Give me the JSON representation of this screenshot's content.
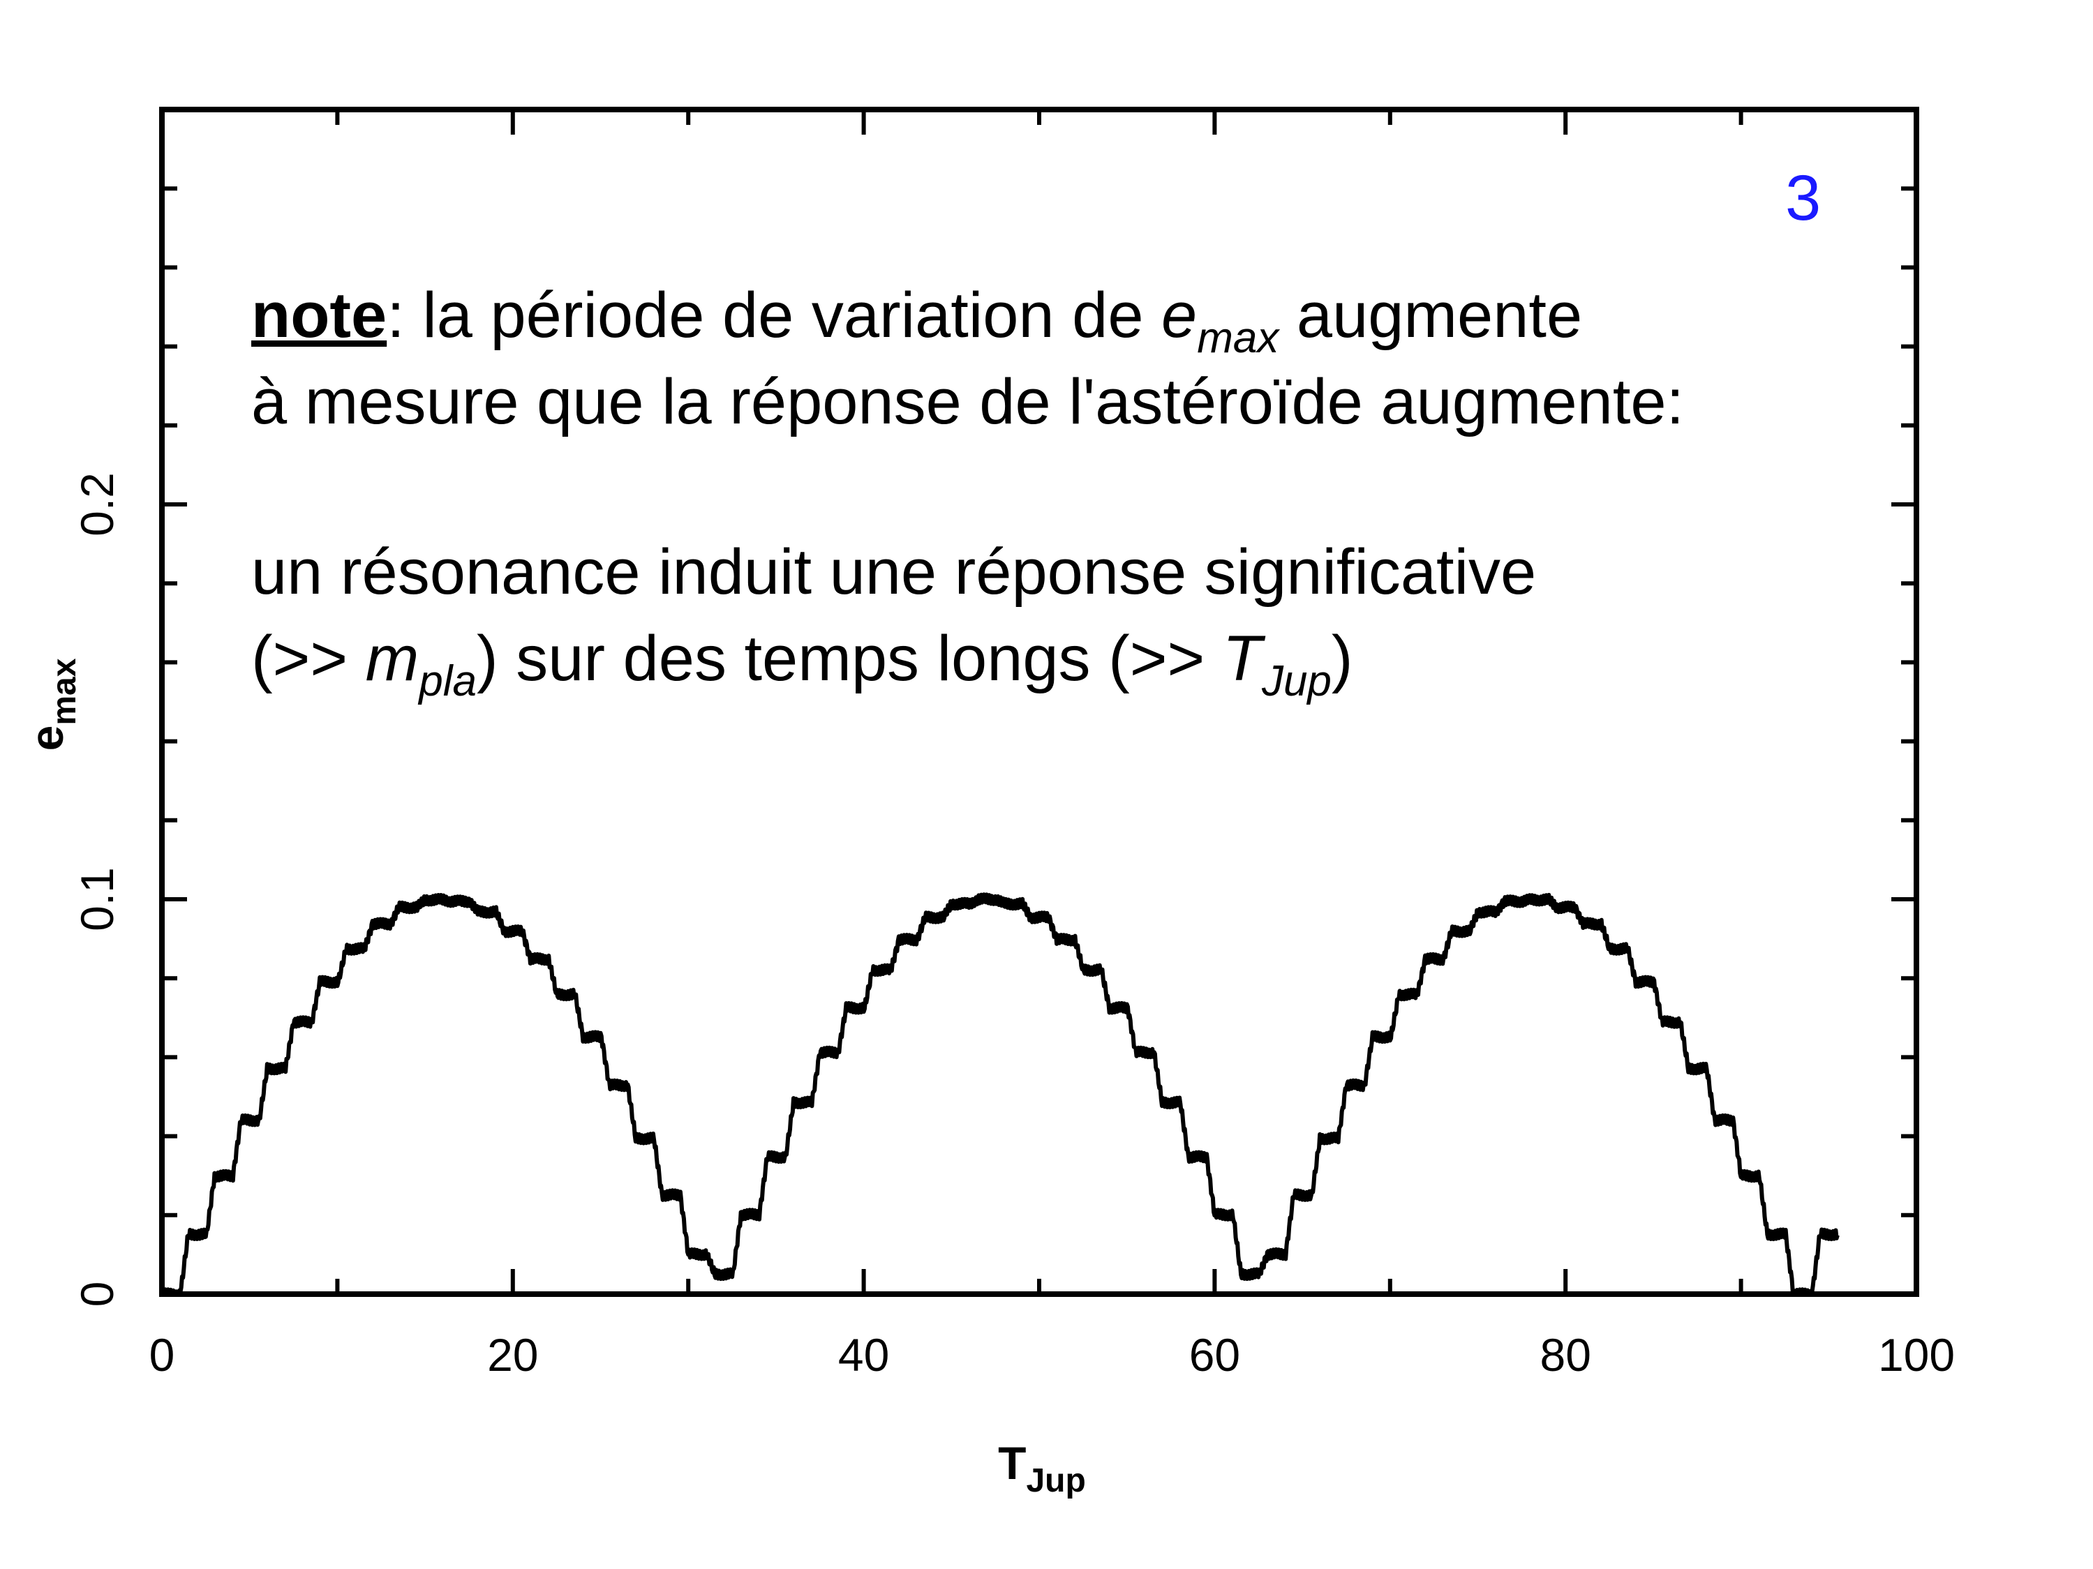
{
  "chart_data": {
    "type": "line",
    "xlabel": {
      "base": "T",
      "sub": "Jup"
    },
    "ylabel": {
      "base": "e",
      "sub": "max"
    },
    "xlim": [
      0,
      100
    ],
    "ylim": [
      0,
      0.3
    ],
    "x_ticks": [
      "0",
      "20",
      "40",
      "60",
      "80",
      "100"
    ],
    "y_ticks": [
      "0",
      "0.1",
      "0.2"
    ],
    "series": [
      {
        "line_color": "#000000",
        "period": 31,
        "x_range": [
          0,
          95.5
        ],
        "amplitude": 0.1,
        "step_interval": 1.5,
        "x": [
          0,
          5,
          10,
          15.5,
          20,
          25,
          31,
          36,
          41,
          46.5,
          51,
          56,
          62,
          67,
          72,
          77.5,
          82,
          87,
          93,
          95.5
        ],
        "y": [
          0,
          0.05,
          0.087,
          0.1,
          0.09,
          0.05,
          0.003,
          0.05,
          0.087,
          0.1,
          0.09,
          0.05,
          0.005,
          0.05,
          0.087,
          0.1,
          0.09,
          0.05,
          0.001,
          0.027
        ]
      }
    ]
  },
  "panel_number": "3",
  "note": {
    "line1": {
      "label": "note",
      "text_a": ": la période de variation de ",
      "var": "e",
      "sub": "max",
      "text_b": " augmente"
    },
    "line2": "à mesure que la réponse de l'astéroïde augmente:",
    "line3": "un résonance induit une réponse significative",
    "line4": {
      "open": "(>> ",
      "var1": "m",
      "sub1": "pla",
      "mid": ") sur des temps longs (>> ",
      "var2": "T",
      "sub2": "Jup",
      "close": ")"
    }
  }
}
